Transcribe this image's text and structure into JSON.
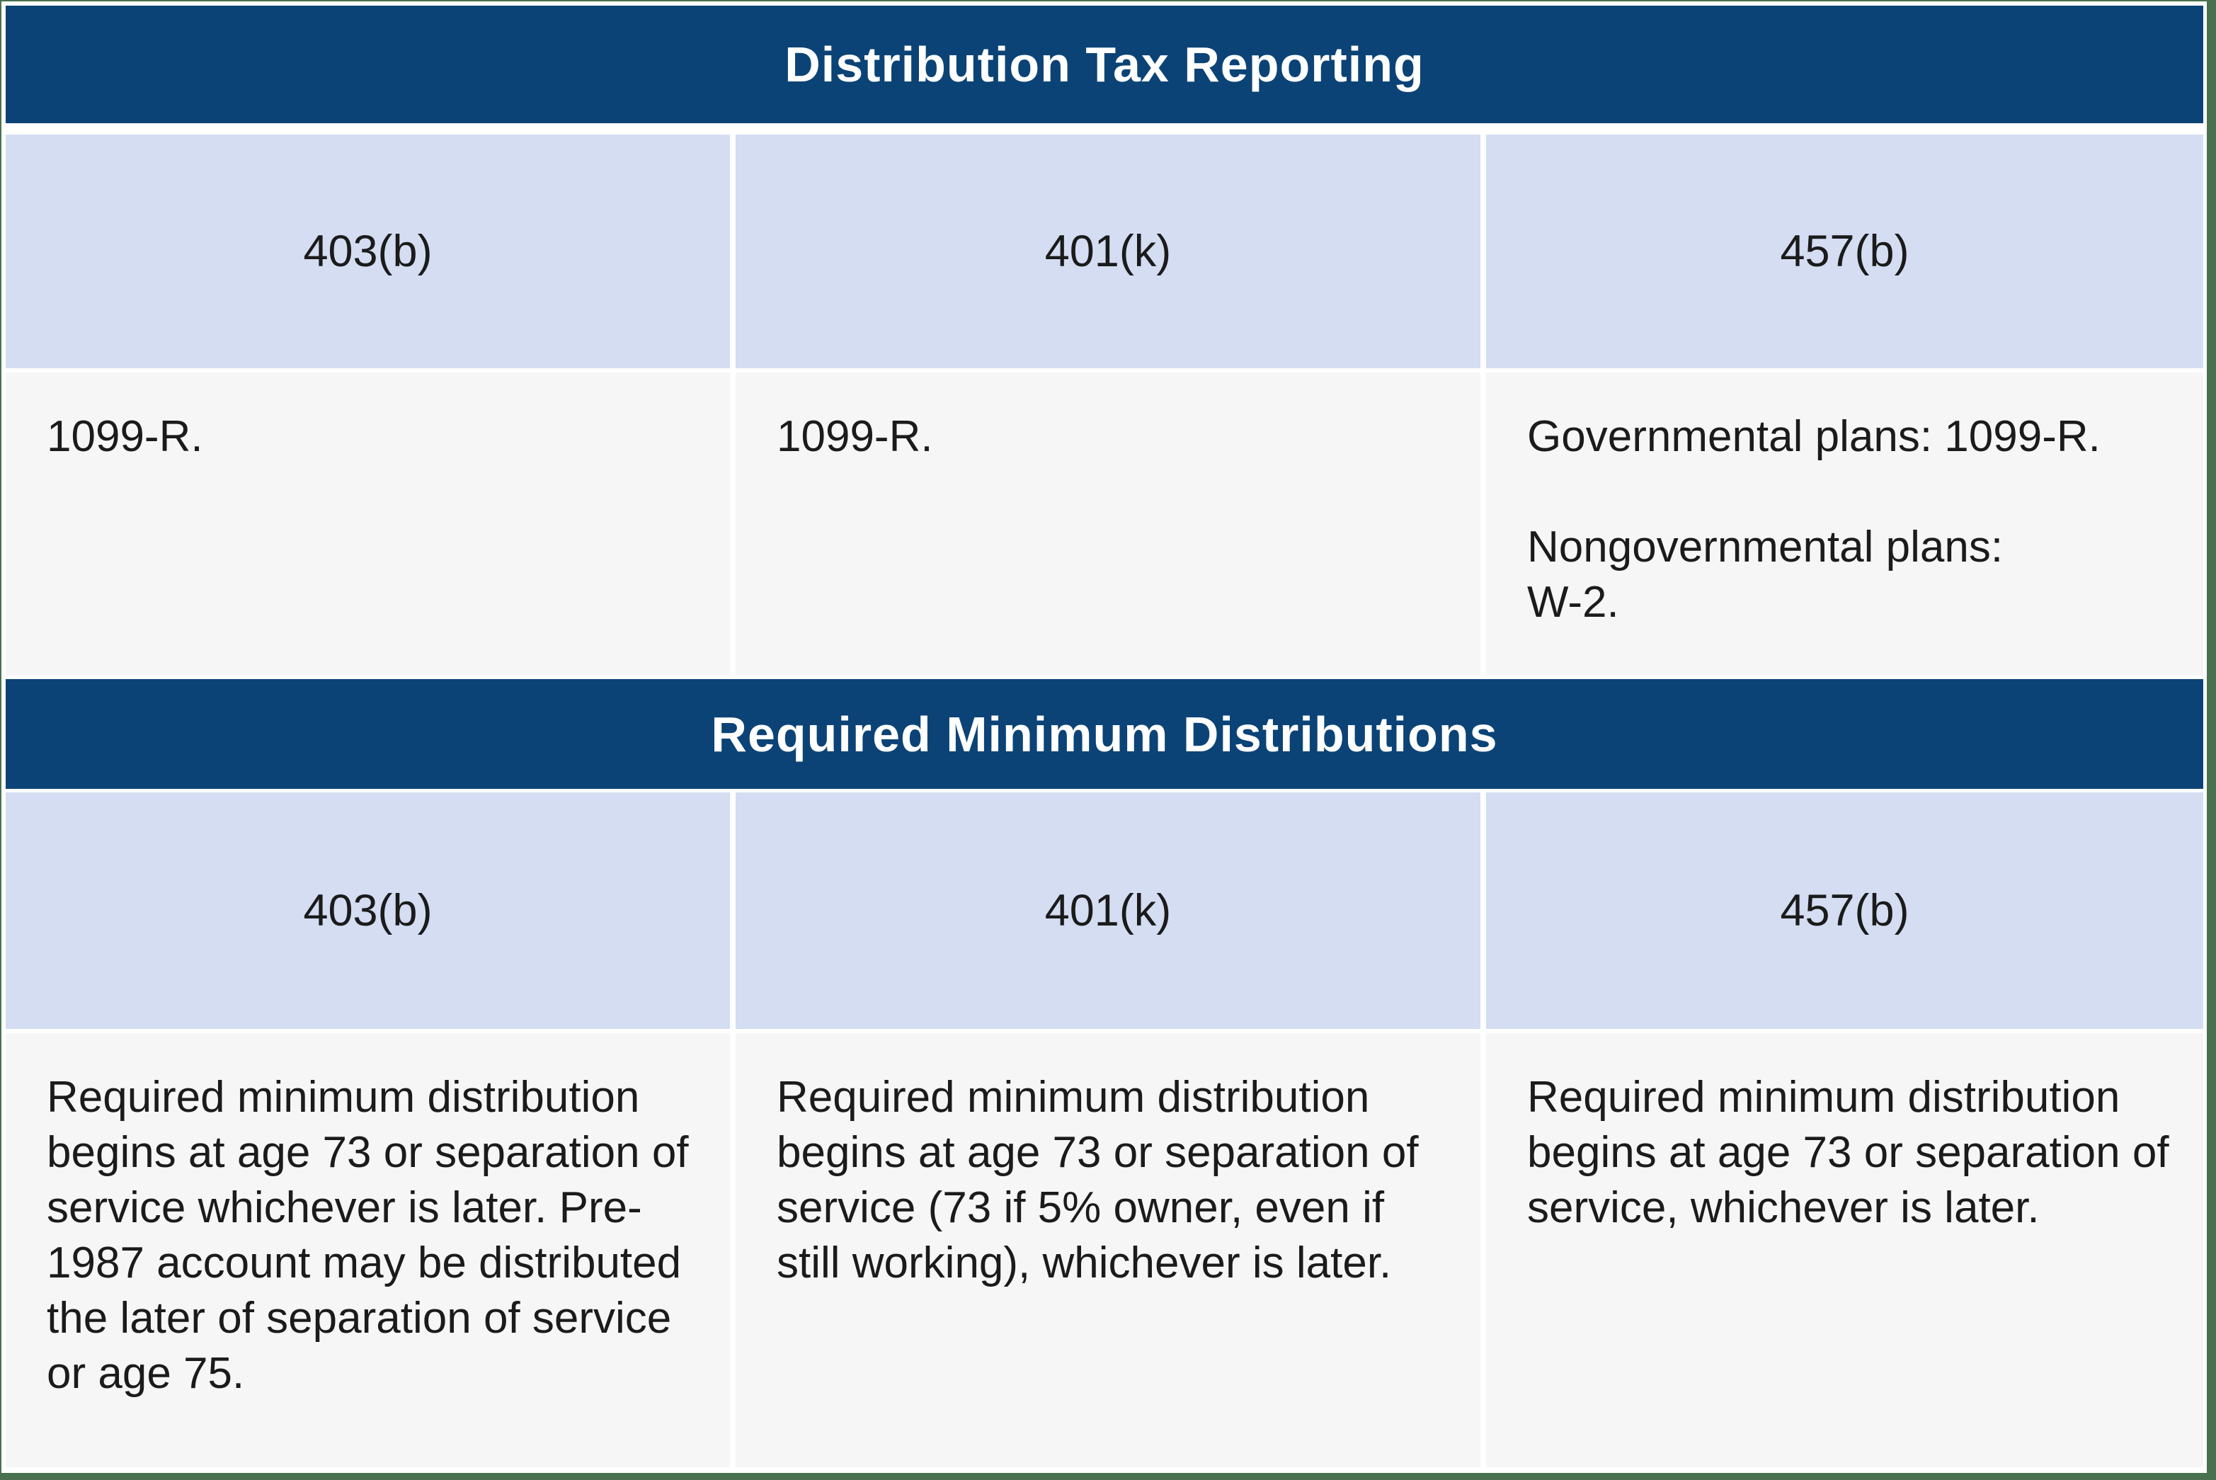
{
  "table": {
    "colors": {
      "section_header_bg": "#0b4376",
      "section_header_text": "#ffffff",
      "column_header_bg": "#d4ddf2",
      "cell_bg": "#f6f6f6",
      "body_text": "#1b1b1b",
      "frame_border": "#4a714f",
      "divider": "#ffffff"
    },
    "sections": [
      {
        "title": "Distribution Tax Reporting",
        "columns": [
          "403(b)",
          "401(k)",
          "457(b)"
        ],
        "cells": [
          {
            "paragraphs": [
              "1099-R."
            ]
          },
          {
            "paragraphs": [
              "1099-R."
            ]
          },
          {
            "paragraphs": [
              "Governmental plans: 1099-R.",
              "Nongovernmental plans:\nW-2."
            ]
          }
        ]
      },
      {
        "title": "Required Minimum Distributions",
        "columns": [
          "403(b)",
          "401(k)",
          "457(b)"
        ],
        "cells": [
          {
            "paragraphs": [
              "Required minimum distribution begins at age 73 or separation of service whichever is later. Pre-1987 account may be distributed the later of separation of service or age 75."
            ]
          },
          {
            "paragraphs": [
              "Required minimum distribution begins at age 73 or separation of service (73 if 5% owner, even if still working), whichever is later."
            ]
          },
          {
            "paragraphs": [
              "Required minimum distribution begins at age 73 or separation of service, whichever is later."
            ]
          }
        ]
      }
    ]
  }
}
